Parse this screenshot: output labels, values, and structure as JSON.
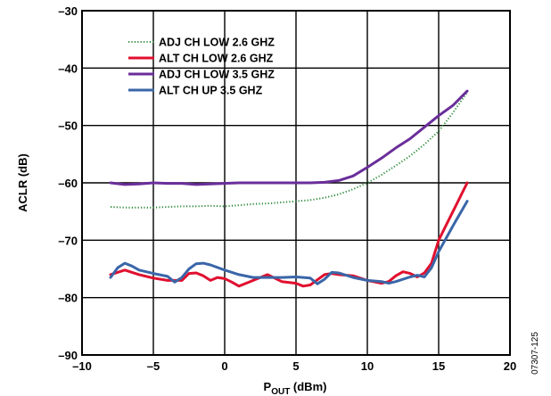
{
  "chart_data": {
    "type": "line",
    "title": "",
    "xlabel": "P",
    "xlabel_sub": "OUT",
    "xlabel_unit": " (dBm)",
    "ylabel": "ACLR (dB)",
    "xlim": [
      -10,
      20
    ],
    "ylim": [
      -90,
      -30
    ],
    "xticks": [
      -10,
      -5,
      0,
      5,
      10,
      15,
      20
    ],
    "xtick_labels": [
      "–10",
      "–5",
      "0",
      "5",
      "10",
      "15",
      "20"
    ],
    "yticks": [
      -90,
      -80,
      -70,
      -60,
      -50,
      -40,
      -30
    ],
    "ytick_labels": [
      "–90",
      "–80",
      "–70",
      "–60",
      "–50",
      "–40",
      "–30"
    ],
    "grid": true,
    "legend_position": "top-left",
    "figure_id": "07307-125",
    "series": [
      {
        "name": "ADJ CH LOW 2.6 GHZ",
        "color": "#2e8b3a",
        "style": "dotted",
        "x": [
          -8,
          -7,
          -6,
          -5,
          -4,
          -3,
          -2,
          -1,
          0,
          1,
          2,
          3,
          4,
          5,
          6,
          7,
          8,
          9,
          10,
          11,
          12,
          13,
          14,
          15,
          16,
          17
        ],
        "y": [
          -64.2,
          -64.3,
          -64.3,
          -64.3,
          -64.2,
          -64.1,
          -64.1,
          -64.0,
          -64.1,
          -63.9,
          -63.7,
          -63.6,
          -63.4,
          -63.2,
          -63.0,
          -62.6,
          -62.0,
          -61.1,
          -60.0,
          -58.6,
          -57.0,
          -55.3,
          -53.3,
          -51.0,
          -47.8,
          -44.2
        ]
      },
      {
        "name": "ALT CH LOW 2.6 GHZ",
        "color": "#e0102f",
        "style": "solid",
        "x": [
          -8,
          -7,
          -6,
          -5,
          -4,
          -3,
          -2.5,
          -2,
          -1.5,
          -1,
          -0.5,
          0,
          0.5,
          1,
          1.5,
          2,
          3,
          4,
          5,
          5.5,
          6,
          6.5,
          7,
          7.5,
          8,
          9,
          10,
          11,
          11.5,
          12,
          12.5,
          13,
          13.5,
          14,
          14.5,
          15,
          16,
          17
        ],
        "y": [
          -76.0,
          -75.2,
          -76.0,
          -76.6,
          -77.0,
          -77.0,
          -75.8,
          -75.7,
          -76.2,
          -77.0,
          -76.5,
          -76.7,
          -77.3,
          -78.0,
          -77.5,
          -77.0,
          -76.0,
          -77.2,
          -77.5,
          -78.0,
          -77.8,
          -76.9,
          -76.0,
          -75.8,
          -76.0,
          -76.2,
          -77.0,
          -77.5,
          -77.2,
          -76.2,
          -75.5,
          -75.8,
          -76.4,
          -75.7,
          -74.0,
          -70.0,
          -65.0,
          -60.0
        ]
      },
      {
        "name": "ADJ CH LOW 3.5 GHZ",
        "color": "#6a2e9a",
        "style": "solid",
        "x": [
          -8,
          -7,
          -6,
          -5,
          -4,
          -3,
          -2,
          -1,
          0,
          1,
          2,
          3,
          4,
          5,
          6,
          7,
          8,
          9,
          10,
          11,
          12,
          13,
          14,
          15,
          16,
          17
        ],
        "y": [
          -60.0,
          -60.3,
          -60.2,
          -60.0,
          -60.1,
          -60.1,
          -60.3,
          -60.2,
          -60.1,
          -60.0,
          -60.0,
          -60.0,
          -60.0,
          -60.0,
          -60.0,
          -59.9,
          -59.6,
          -58.8,
          -57.3,
          -55.7,
          -53.9,
          -52.3,
          -50.3,
          -48.3,
          -46.5,
          -44.0
        ]
      },
      {
        "name": "ALT CH UP 3.5 GHZ",
        "color": "#3a66a8",
        "style": "solid",
        "x": [
          -8,
          -7.5,
          -7,
          -6.5,
          -6,
          -5,
          -4,
          -3.5,
          -3,
          -2.5,
          -2,
          -1.5,
          -1,
          0,
          1,
          2,
          3,
          4,
          5,
          6,
          6.5,
          7,
          7.5,
          8,
          9,
          10,
          11,
          11.5,
          12,
          13,
          13.5,
          14,
          14.5,
          15,
          16,
          17
        ],
        "y": [
          -76.5,
          -74.8,
          -74.0,
          -74.5,
          -75.2,
          -75.8,
          -76.3,
          -77.3,
          -76.5,
          -75.0,
          -74.1,
          -74.0,
          -74.3,
          -75.2,
          -76.0,
          -76.5,
          -76.5,
          -76.5,
          -76.4,
          -76.6,
          -77.6,
          -76.8,
          -75.6,
          -75.7,
          -76.5,
          -77.0,
          -77.2,
          -77.5,
          -77.2,
          -76.4,
          -76.1,
          -76.4,
          -74.8,
          -72.0,
          -67.5,
          -63.2
        ]
      }
    ]
  }
}
